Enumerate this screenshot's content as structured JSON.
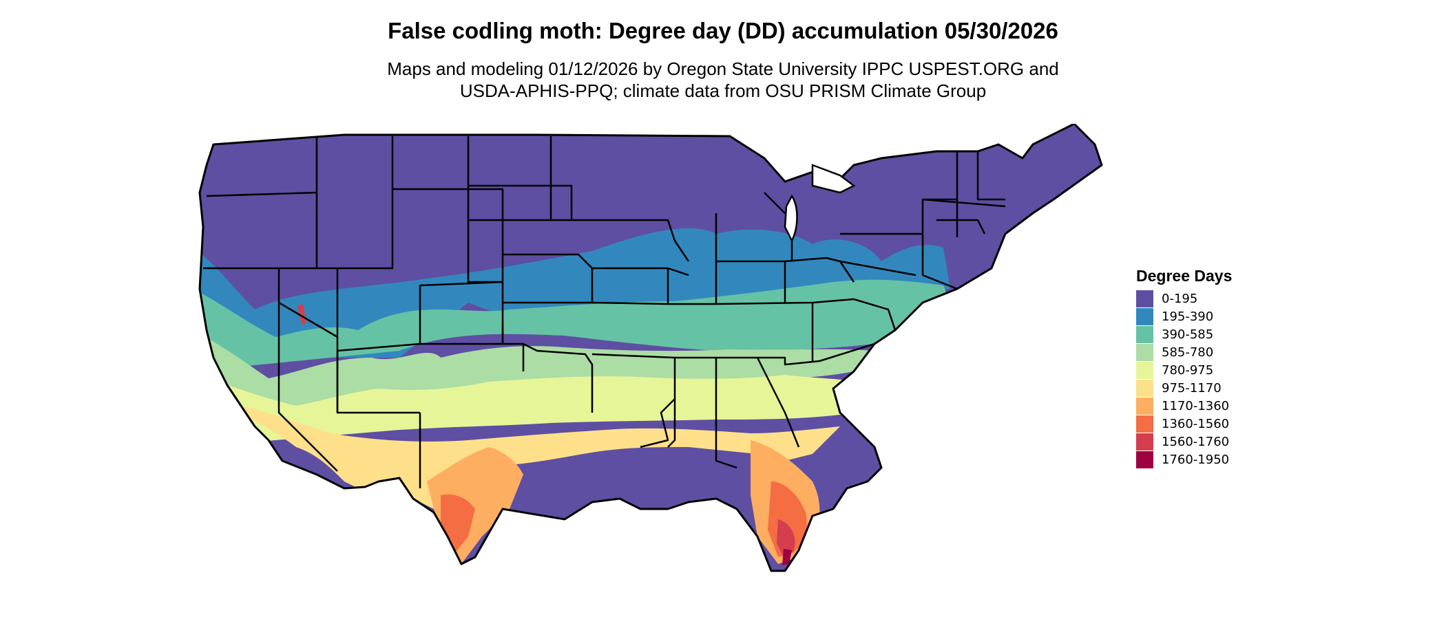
{
  "title": "False codling moth: Degree day (DD) accumulation 05/30/2026",
  "subtitle": [
    "Maps and modeling 01/12/2026 by Oregon State University IPPC USPEST.ORG and",
    "USDA-APHIS-PPQ; climate data from OSU PRISM Climate Group"
  ],
  "legend": {
    "title": "Degree Days",
    "items": [
      {
        "label": "0-195",
        "color": "#5E4FA2"
      },
      {
        "label": "195-390",
        "color": "#3288BD"
      },
      {
        "label": "390-585",
        "color": "#66C2A5"
      },
      {
        "label": "585-780",
        "color": "#ABDDA4"
      },
      {
        "label": "780-975",
        "color": "#E6F598"
      },
      {
        "label": "975-1170",
        "color": "#FEE08B"
      },
      {
        "label": "1170-1360",
        "color": "#FDAE61"
      },
      {
        "label": "1360-1560",
        "color": "#F46D43"
      },
      {
        "label": "1560-1760",
        "color": "#D53E4F"
      },
      {
        "label": "1760-1950",
        "color": "#9E0142"
      }
    ]
  }
}
